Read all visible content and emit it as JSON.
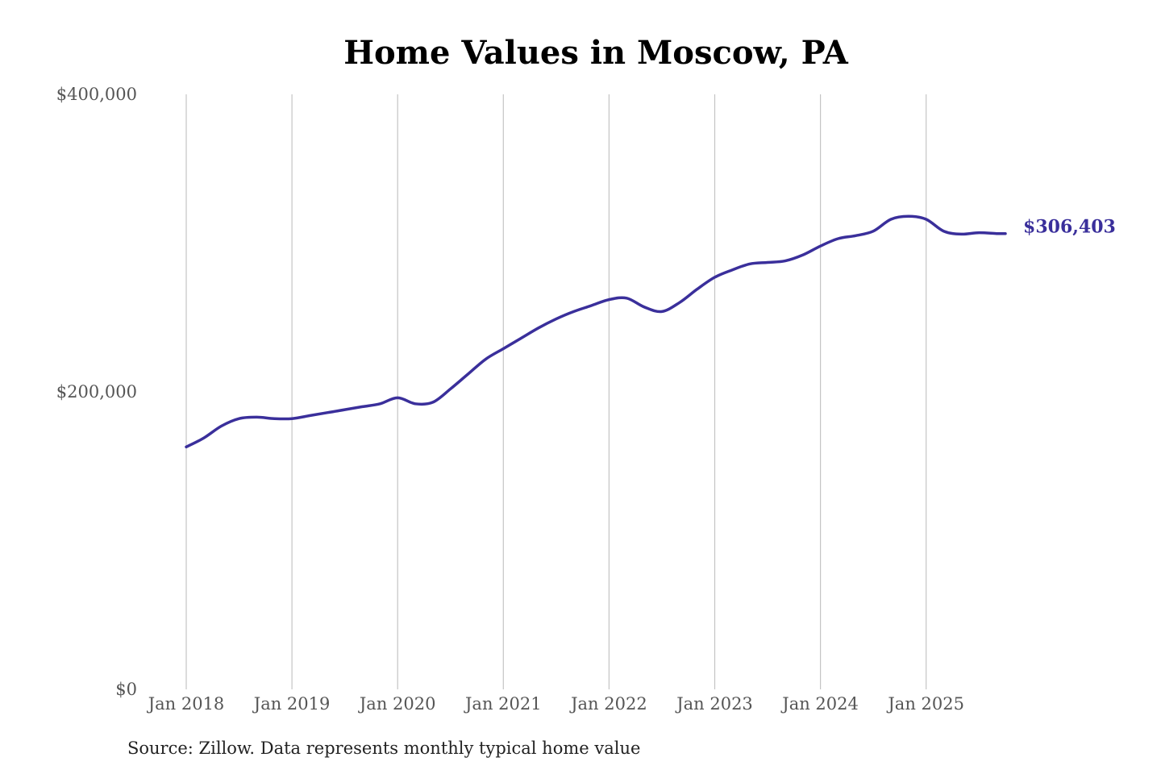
{
  "chart_data": {
    "type": "line",
    "title": "Home Values in Moscow, PA",
    "xlabel": "",
    "ylabel": "",
    "ylim": [
      0,
      400000
    ],
    "y_ticks": [
      "$0",
      "$200,000",
      "$400,000"
    ],
    "y_tick_values": [
      0,
      200000,
      400000
    ],
    "x_ticks": [
      "Jan 2018",
      "Jan 2019",
      "Jan 2020",
      "Jan 2021",
      "Jan 2022",
      "Jan 2023",
      "Jan 2024",
      "Jan 2025"
    ],
    "grid": "vertical",
    "line_color": "#3a2f9b",
    "end_label": "$306,403",
    "series": [
      {
        "x": [
          "2018-01",
          "2018-03",
          "2018-05",
          "2018-07",
          "2018-09",
          "2018-11",
          "2019-01",
          "2019-03",
          "2019-05",
          "2019-07",
          "2019-09",
          "2019-11",
          "2020-01",
          "2020-03",
          "2020-05",
          "2020-07",
          "2020-09",
          "2020-11",
          "2021-01",
          "2021-03",
          "2021-05",
          "2021-07",
          "2021-09",
          "2021-11",
          "2022-01",
          "2022-03",
          "2022-05",
          "2022-07",
          "2022-09",
          "2022-11",
          "2023-01",
          "2023-03",
          "2023-05",
          "2023-07",
          "2023-09",
          "2023-11",
          "2024-01",
          "2024-03",
          "2024-05",
          "2024-07",
          "2024-09",
          "2024-11",
          "2025-01",
          "2025-03",
          "2025-05",
          "2025-07",
          "2025-09",
          "2025-10"
        ],
        "values": [
          163000,
          169000,
          177000,
          182000,
          183000,
          182000,
          182000,
          184000,
          186000,
          188000,
          190000,
          192000,
          196000,
          192000,
          193000,
          202000,
          212000,
          222000,
          229000,
          236000,
          243000,
          249000,
          254000,
          258000,
          262000,
          263000,
          257000,
          254000,
          260000,
          269000,
          277000,
          282000,
          286000,
          287000,
          288000,
          292000,
          298000,
          303000,
          305000,
          308000,
          316000,
          318000,
          316000,
          308000,
          306000,
          307000,
          306403,
          306403
        ]
      }
    ],
    "source": "Source: Zillow. Data represents monthly typical home value"
  }
}
